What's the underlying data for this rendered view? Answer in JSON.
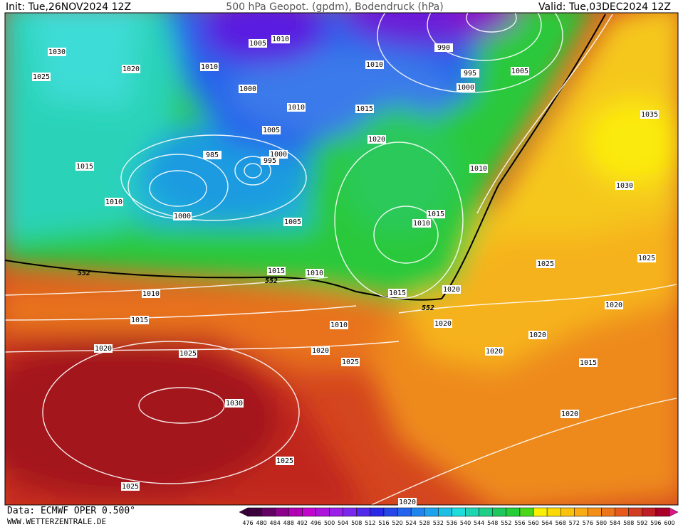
{
  "header": {
    "init": "Init: Tue,26NOV2024 12Z",
    "title": "500 hPa Geopot. (gpdm), Bodendruck (hPa)",
    "valid": "Valid: Tue,03DEC2024 12Z"
  },
  "isobar_labels": [
    1030,
    1025,
    1020,
    1010,
    1005,
    1010,
    990,
    995,
    1005,
    1010,
    1000,
    1000,
    1010,
    1015,
    1035,
    1005,
    1020,
    985,
    1000,
    995,
    1015,
    1010,
    1030,
    1010,
    1000,
    1005,
    1015,
    1010,
    1025,
    1025,
    1015,
    1010,
    552,
    552,
    1010,
    1020,
    1015,
    552,
    1020,
    1015,
    1010,
    1020,
    1020,
    1020,
    1025,
    1020,
    1020,
    1025,
    1015,
    1030,
    1020,
    1025,
    1025,
    1020
  ],
  "colorbar": {
    "labels": [
      476,
      480,
      484,
      488,
      492,
      496,
      500,
      504,
      508,
      512,
      516,
      520,
      524,
      528,
      532,
      536,
      540,
      544,
      548,
      552,
      556,
      560,
      564,
      568,
      572,
      576,
      580,
      584,
      588,
      592,
      596,
      600
    ]
  },
  "footer": {
    "source": "Data: ECMWF OPER 0.500°",
    "site": "WWW.WETTERZENTRALE.DE"
  }
}
